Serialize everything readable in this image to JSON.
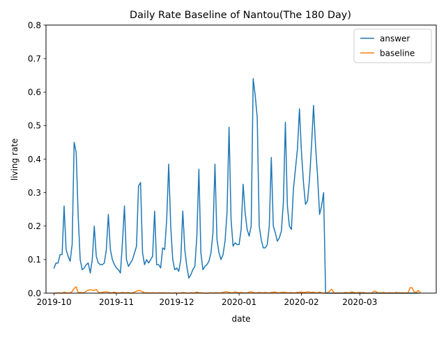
{
  "chart_data": {
    "type": "line",
    "title": "Daily Rate Baseline of Nantou(The 180 Day)",
    "xlabel": "date",
    "ylabel": "living rate",
    "x_range": [
      "2019-09-27",
      "2020-04-08"
    ],
    "ylim": [
      0,
      0.8
    ],
    "x_ticks": [
      {
        "date": "2019-10-01",
        "label": "2019-10"
      },
      {
        "date": "2019-11-01",
        "label": "2019-11"
      },
      {
        "date": "2019-12-01",
        "label": "2019-12"
      },
      {
        "date": "2020-01-01",
        "label": "2020-01"
      },
      {
        "date": "2020-02-01",
        "label": "2020-02"
      },
      {
        "date": "2020-03-01",
        "label": "2020-03"
      }
    ],
    "y_ticks": [
      {
        "value": 0.0,
        "label": "0.0"
      },
      {
        "value": 0.1,
        "label": "0.1"
      },
      {
        "value": 0.2,
        "label": "0.2"
      },
      {
        "value": 0.3,
        "label": "0.3"
      },
      {
        "value": 0.4,
        "label": "0.4"
      },
      {
        "value": 0.5,
        "label": "0.5"
      },
      {
        "value": 0.6,
        "label": "0.6"
      },
      {
        "value": 0.7,
        "label": "0.7"
      },
      {
        "value": 0.8,
        "label": "0.8"
      }
    ],
    "grid": false,
    "legend": "top-right",
    "series": [
      {
        "name": "answer",
        "color": "#1f77b4",
        "start_date": "2019-10-01",
        "values": [
          0.075,
          0.09,
          0.09,
          0.115,
          0.115,
          0.26,
          0.13,
          0.11,
          0.095,
          0.145,
          0.45,
          0.42,
          0.23,
          0.1,
          0.07,
          0.075,
          0.085,
          0.09,
          0.06,
          0.1,
          0.2,
          0.11,
          0.09,
          0.085,
          0.085,
          0.09,
          0.13,
          0.235,
          0.13,
          0.1,
          0.085,
          0.075,
          0.07,
          0.06,
          0.15,
          0.26,
          0.1,
          0.08,
          0.09,
          0.1,
          0.12,
          0.14,
          0.32,
          0.33,
          0.12,
          0.085,
          0.1,
          0.09,
          0.1,
          0.11,
          0.245,
          0.085,
          0.085,
          0.075,
          0.135,
          0.13,
          0.22,
          0.385,
          0.2,
          0.1,
          0.07,
          0.075,
          0.065,
          0.1,
          0.245,
          0.13,
          0.08,
          0.045,
          0.055,
          0.07,
          0.08,
          0.17,
          0.37,
          0.12,
          0.07,
          0.08,
          0.085,
          0.095,
          0.12,
          0.18,
          0.385,
          0.16,
          0.12,
          0.1,
          0.115,
          0.155,
          0.24,
          0.495,
          0.22,
          0.14,
          0.15,
          0.145,
          0.145,
          0.19,
          0.325,
          0.24,
          0.19,
          0.17,
          0.2,
          0.64,
          0.59,
          0.525,
          0.2,
          0.16,
          0.135,
          0.135,
          0.145,
          0.2,
          0.405,
          0.2,
          0.18,
          0.155,
          0.165,
          0.185,
          0.27,
          0.51,
          0.26,
          0.2,
          0.19,
          0.31,
          0.37,
          0.43,
          0.55,
          0.42,
          0.33,
          0.265,
          0.275,
          0.34,
          0.44,
          0.56,
          0.44,
          0.35,
          0.235,
          0.26,
          0.3,
          0.0,
          0.0,
          0.0,
          0.0,
          0.0,
          0.0,
          0.0,
          0.0,
          0.0,
          0.0,
          0.0,
          0.0,
          0.0,
          0.0,
          0.0,
          0.0,
          0.0,
          0.0,
          0.0,
          0.0,
          0.0,
          0.0,
          0.0,
          0.0,
          0.0,
          0.0,
          0.0,
          0.0,
          0.0,
          0.0,
          0.0,
          0.0,
          0.0,
          0.0,
          0.0,
          0.0,
          0.0,
          0.0,
          0.0,
          0.0,
          0.0,
          0.0,
          0.0,
          0.0,
          0.0,
          0.0,
          0.0
        ]
      },
      {
        "name": "baseline",
        "color": "#ff7f0e",
        "start_date": "2019-10-01",
        "values": [
          0.0,
          0.0,
          0.001,
          0.0,
          0.0,
          0.003,
          0.001,
          0.0,
          0.001,
          0.005,
          0.014,
          0.019,
          0.001,
          0.002,
          0.001,
          0.001,
          0.006,
          0.009,
          0.01,
          0.009,
          0.008,
          0.011,
          0.003,
          0.001,
          0.002,
          0.004,
          0.004,
          0.003,
          0.001,
          0.001,
          0.003,
          0.001,
          0.0,
          0.001,
          0.002,
          0.001,
          0.001,
          0.002,
          0.0,
          0.001,
          0.003,
          0.006,
          0.008,
          0.007,
          0.004,
          0.001,
          0.001,
          0.001,
          0.0,
          0.001,
          0.001,
          0.0,
          0.001,
          0.001,
          0.001,
          0.001,
          0.0,
          0.001,
          0.0,
          0.0,
          0.001,
          0.0,
          0.0,
          0.0,
          0.002,
          0.001,
          0.0,
          0.0,
          0.001,
          0.0,
          0.001,
          0.003,
          0.001,
          0.001,
          0.0,
          0.0,
          0.0,
          0.0,
          0.001,
          0.0,
          0.001,
          0.001,
          0.0,
          0.001,
          0.002,
          0.004,
          0.004,
          0.002,
          0.001,
          0.001,
          0.004,
          0.002,
          0.001,
          0.002,
          0.001,
          0.0,
          0.001,
          0.003,
          0.004,
          0.002,
          0.001,
          0.001,
          0.002,
          0.001,
          0.001,
          0.002,
          0.001,
          0.0,
          0.002,
          0.003,
          0.003,
          0.001,
          0.001,
          0.002,
          0.003,
          0.002,
          0.001,
          0.001,
          0.002,
          0.0,
          0.001,
          0.002,
          0.003,
          0.003,
          0.002,
          0.002,
          0.004,
          0.003,
          0.002,
          0.003,
          0.001,
          0.001,
          0.003,
          0.001,
          0.0,
          0.0,
          0.002,
          0.006,
          0.012,
          0.002,
          0.0,
          0.0,
          0.001,
          0.0,
          0.001,
          0.002,
          0.001,
          0.001,
          0.004,
          0.002,
          0.001,
          0.001,
          0.002,
          0.001,
          0.002,
          0.0,
          0.0,
          0.0,
          0.0,
          0.006,
          0.005,
          0.001,
          0.001,
          0.001,
          0.002,
          0.0,
          0.001,
          0.001,
          0.001,
          0.0,
          0.002,
          0.001,
          0.001,
          0.001,
          0.001,
          0.0,
          0.001,
          0.016,
          0.016,
          0.004,
          0.002,
          0.008,
          0.002
        ]
      }
    ]
  }
}
